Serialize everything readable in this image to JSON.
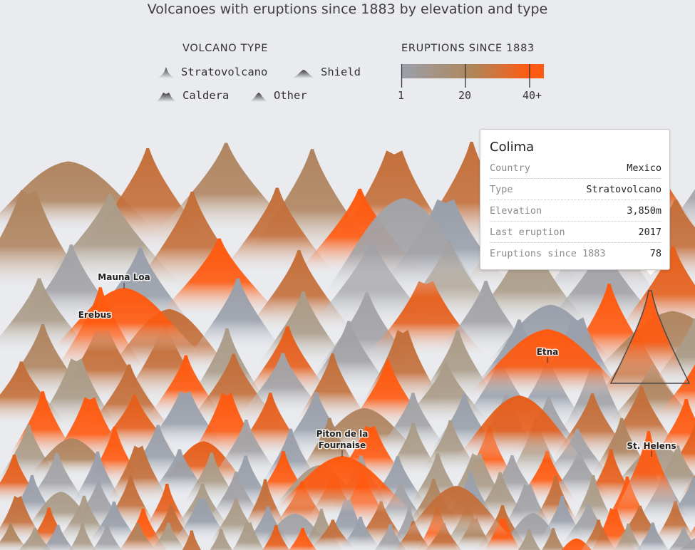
{
  "chart_data": {
    "type": "scatter",
    "title": "Volcanoes with eruptions since 1883 by elevation and type",
    "legend_type": {
      "title": "VOLCANO TYPE",
      "items": [
        {
          "key": "stratovolcano",
          "label": "Stratovolcano"
        },
        {
          "key": "shield",
          "label": "Shield"
        },
        {
          "key": "caldera",
          "label": "Caldera"
        },
        {
          "key": "other",
          "label": "Other"
        }
      ]
    },
    "legend_eruptions": {
      "title": "ERUPTIONS SINCE 1883",
      "ticks": [
        "1",
        "20",
        "40+"
      ],
      "domain": [
        1,
        40
      ],
      "colors": [
        "#9aa0ab",
        "#b0865a",
        "#ff5a10"
      ]
    },
    "labeled_volcanoes": [
      {
        "name": "Mauna Loa",
        "type": "shield"
      },
      {
        "name": "Erebus",
        "type": "stratovolcano"
      },
      {
        "name": "Etna",
        "type": "stratovolcano"
      },
      {
        "name": "Piton de la Fournaise",
        "type": "shield"
      },
      {
        "name": "St. Helens",
        "type": "stratovolcano"
      }
    ]
  },
  "tooltip": {
    "title": "Colima",
    "rows": [
      {
        "label": "Country",
        "value": "Mexico"
      },
      {
        "label": "Type",
        "value": "Stratovolcano"
      },
      {
        "label": "Elevation",
        "value": "3,850m"
      },
      {
        "label": "Last eruption",
        "value": "2017"
      },
      {
        "label": "Eruptions since 1883",
        "value": "78"
      }
    ]
  }
}
